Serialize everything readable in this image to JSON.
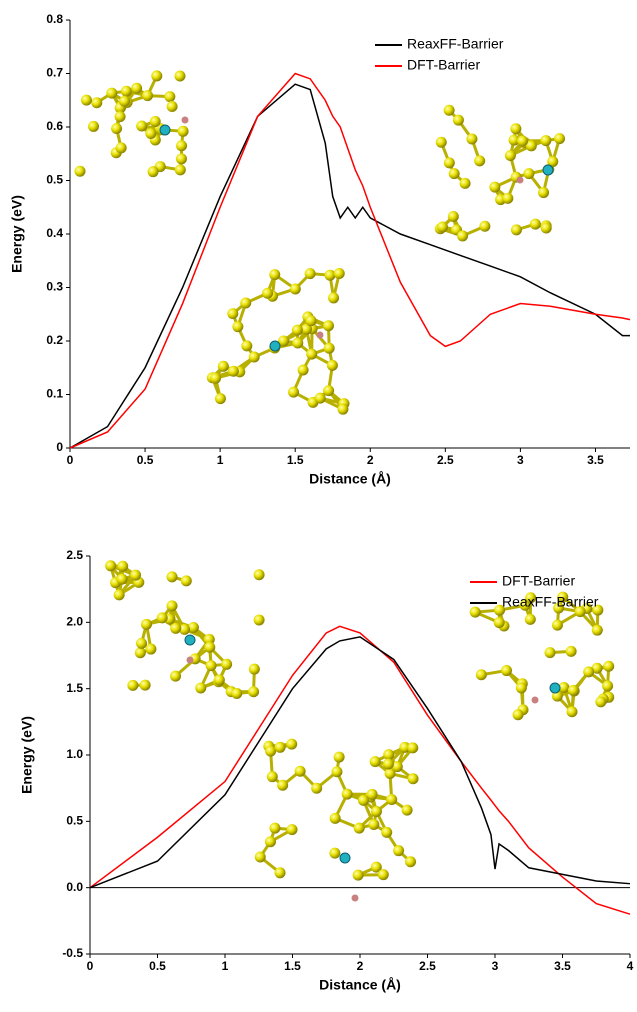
{
  "chart_data": [
    {
      "type": "line",
      "xlabel": "Distance (Å)",
      "ylabel": "Energy (eV)",
      "x": [
        0,
        0.25,
        0.5,
        0.75,
        1,
        1.25,
        1.5,
        1.6,
        1.7,
        1.75,
        1.8,
        1.85,
        1.9,
        1.95,
        2,
        2.2,
        2.4,
        2.5,
        2.6,
        2.8,
        3,
        3.2,
        3.5,
        3.68,
        3.73
      ],
      "series": [
        {
          "name": "ReaxFF-Barrier",
          "color": "#000000",
          "values": [
            0,
            0.04,
            0.15,
            0.3,
            0.47,
            0.62,
            0.68,
            0.67,
            0.57,
            0.47,
            0.43,
            0.45,
            0.43,
            0.45,
            0.43,
            0.4,
            0.38,
            0.37,
            0.36,
            0.34,
            0.32,
            0.29,
            0.25,
            0.21,
            0.21
          ]
        },
        {
          "name": "DFT-Barrier",
          "color": "#ff0000",
          "values": [
            0,
            0.03,
            0.11,
            0.27,
            0.45,
            0.62,
            0.7,
            0.69,
            0.65,
            0.62,
            0.6,
            0.56,
            0.52,
            0.49,
            0.45,
            0.31,
            0.21,
            0.19,
            0.2,
            0.25,
            0.27,
            0.265,
            0.25,
            0.243,
            0.24
          ]
        }
      ],
      "xlim": [
        0,
        3.73
      ],
      "xticks": [
        0,
        0.5,
        1,
        1.5,
        2,
        2.5,
        3,
        3.5
      ],
      "ylim": [
        0,
        0.8
      ],
      "yticks": [
        0,
        0.1,
        0.2,
        0.3,
        0.4,
        0.5,
        0.6,
        0.7,
        0.8
      ],
      "legend": "upper right",
      "grid": false
    },
    {
      "type": "line",
      "xlabel": "Distance (Å)",
      "ylabel": "Energy (eV)",
      "x": [
        0,
        0.5,
        1,
        1.25,
        1.5,
        1.75,
        1.85,
        2,
        2.25,
        2.5,
        2.75,
        2.9,
        2.97,
        3,
        3.03,
        3.1,
        3.25,
        3.5,
        3.75,
        4
      ],
      "series": [
        {
          "name": "DFT-Barrier",
          "color": "#ff0000",
          "values": [
            0,
            0.38,
            0.8,
            1.2,
            1.6,
            1.92,
            1.97,
            1.92,
            1.7,
            1.3,
            0.95,
            0.75,
            0.66,
            0.62,
            0.58,
            0.5,
            0.3,
            0.08,
            -0.12,
            -0.2
          ]
        },
        {
          "name": "ReaxFF-Barrier",
          "color": "#000000",
          "values": [
            0,
            0.2,
            0.7,
            1.1,
            1.5,
            1.8,
            1.86,
            1.89,
            1.72,
            1.35,
            0.95,
            0.6,
            0.4,
            0.14,
            0.33,
            0.28,
            0.15,
            0.1,
            0.05,
            0.03
          ]
        }
      ],
      "xlim": [
        0,
        4
      ],
      "xticks": [
        0,
        0.5,
        1,
        1.5,
        2,
        2.5,
        3,
        3.5,
        4
      ],
      "ylim": [
        -0.5,
        2.5
      ],
      "yticks": [
        -0.5,
        {
          "value": 0,
          "label": "0.0"
        },
        0.5,
        {
          "value": 1,
          "label": "1.0"
        },
        1.5,
        {
          "value": 2,
          "label": "2.0"
        },
        2.5
      ],
      "legend": "upper right",
      "grid": false
    }
  ]
}
